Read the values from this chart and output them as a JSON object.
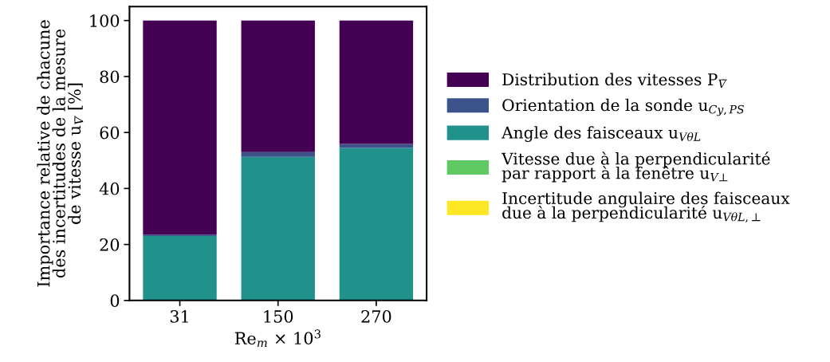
{
  "chart_data": {
    "type": "bar",
    "stacked": true,
    "categories": [
      "31",
      "150",
      "270"
    ],
    "xlabel": "Re$_{m}$ × 10$^{3}$",
    "ylabel": "Importance relative de chacune\ndes incertitudes de la mesure\nde vitesse u$_{V̄}$ [%]",
    "ylim": [
      0,
      105
    ],
    "yticks": [
      0,
      20,
      40,
      60,
      80,
      100
    ],
    "legend": "right",
    "grid": false,
    "series": [
      {
        "name": "Incertitude angulaire des faisceaux\ndue à la perpendicularité u$_{VθL,⊥}$",
        "color": "#fde725",
        "values": [
          0,
          0,
          0
        ]
      },
      {
        "name": "Vitesse due à la perpendicularité\npar rapport à la fenêtre u$_{V⊥}$",
        "color": "#5ec962",
        "values": [
          0,
          0,
          0
        ]
      },
      {
        "name": "Angle des faisceaux u$_{VθL}$",
        "color": "#21918c",
        "values": [
          23.0,
          51.3,
          54.5
        ]
      },
      {
        "name": "Orientation de la sonde u$_{Cy,PS}$",
        "color": "#3b528b",
        "values": [
          0.5,
          1.7,
          1.4
        ]
      },
      {
        "name": "Distribution des vitesses P$_{V̄}$",
        "color": "#440154",
        "values": [
          76.5,
          47.0,
          44.1
        ]
      }
    ]
  }
}
